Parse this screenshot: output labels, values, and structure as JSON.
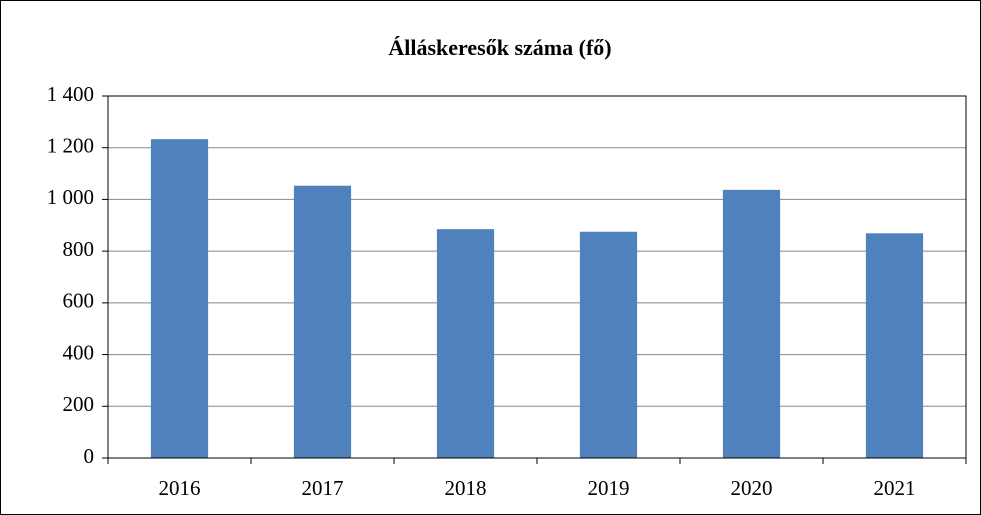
{
  "chart_data": {
    "type": "bar",
    "title": "Álláskeresők száma (fő)",
    "categories": [
      "2016",
      "2017",
      "2018",
      "2019",
      "2020",
      "2021"
    ],
    "values": [
      1233,
      1053,
      885,
      875,
      1037,
      869
    ],
    "color": "#4f81bd",
    "ylim": [
      0,
      1400
    ],
    "yticks": [
      0,
      200,
      400,
      600,
      800,
      {
        "value": 1000,
        "label": "1 000"
      },
      {
        "value": 1200,
        "label": "1 200"
      },
      {
        "value": 1400,
        "label": "1 400"
      }
    ],
    "grid": true
  }
}
